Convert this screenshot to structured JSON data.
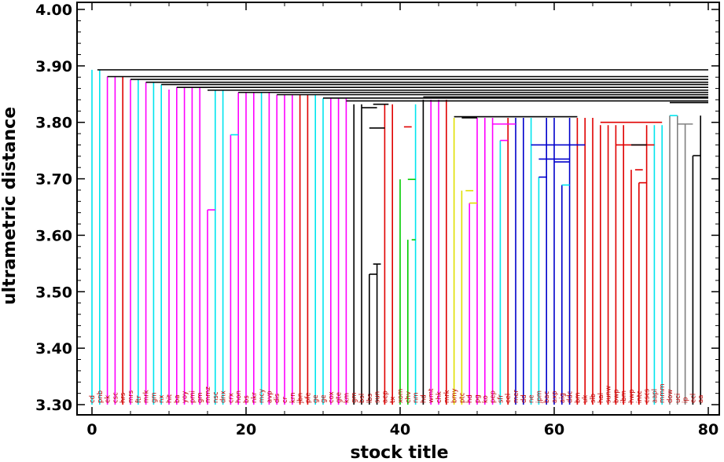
{
  "chart_data": {
    "type": "dendrogram",
    "title": "",
    "xlabel": "stock title",
    "ylabel": "ultrametric distance",
    "xlim": [
      -1,
      81
    ],
    "ylim": [
      3.29,
      4.02
    ],
    "xticks": [
      "0",
      "20",
      "40",
      "60",
      "80"
    ],
    "xtick_values": [
      0,
      20,
      40,
      60,
      80
    ],
    "yticks": [
      "3.30",
      "3.40",
      "3.50",
      "3.60",
      "3.70",
      "3.80",
      "3.90",
      "4.00"
    ],
    "ytick_values": [
      3.3,
      3.4,
      3.5,
      3.6,
      3.7,
      3.8,
      3.9,
      4.0
    ],
    "grid": false,
    "baseline": 3.3,
    "leaves": [
      "cd",
      "pnb",
      "ek",
      "csc",
      "hrs",
      "mrs",
      "ftr",
      "mrk",
      "gm",
      "nx",
      "hit",
      "ba",
      "yoy",
      "pmi",
      "gm",
      "mmz",
      "nsc",
      "dnx",
      "crx",
      "hon",
      "bs",
      "nkr",
      "mcy",
      "avp",
      "dis",
      "cr",
      "krn",
      "jbn",
      "pfe",
      "ge",
      "ge",
      "cox",
      "gte",
      "km",
      "gm",
      "bsl",
      "lbs",
      "sun",
      "aep",
      "tx",
      "xom",
      "chv",
      "nm",
      "hd",
      "wmt",
      "chk",
      "mrk",
      "bmy",
      "ptc",
      "hd",
      "pg",
      "ko",
      "pep",
      "sfr",
      "cel",
      "mer",
      "dd",
      "ne",
      "jpm",
      "bac",
      "axp",
      "aig",
      "ddc",
      "bm",
      "uk",
      "slb",
      "hal",
      "sunw",
      "bwp",
      "ibm",
      "hwp",
      "intc",
      "cscs",
      "aapl",
      "mmm",
      "dow",
      "uci",
      "ip",
      "ecl",
      "aa"
    ],
    "leaf_colors": [
      "#00e5ee",
      "#00e5ee",
      "#ff00ff",
      "#ff00ff",
      "#e00000",
      "#ff00ff",
      "#00e5ee",
      "#ff00ff",
      "#00e5ee",
      "#00e5ee",
      "#ff00ff",
      "#ff00ff",
      "#ff00ff",
      "#ff00ff",
      "#ff00ff",
      "#ff00ff",
      "#00e5ee",
      "#00e5ee",
      "#ff00ff",
      "#ff00ff",
      "#ff00ff",
      "#ff00ff",
      "#00e5ee",
      "#ff00ff",
      "#ff00ff",
      "#ff00ff",
      "#ff00ff",
      "#e00000",
      "#e00000",
      "#00e5ee",
      "#00e5ee",
      "#ff00ff",
      "#ff00ff",
      "#ff00ff",
      "#000000",
      "#000000",
      "#000000",
      "#000000",
      "#e00000",
      "#e00000",
      "#00cc00",
      "#00cc00",
      "#00e5ee",
      "#000000",
      "#ff00ff",
      "#ff00ff",
      "#e00000",
      "#e0e000",
      "#e0e000",
      "#ff00ff",
      "#ff00ff",
      "#ff00ff",
      "#ff00ff",
      "#00e5ee",
      "#e00000",
      "#0000cc",
      "#0000cc",
      "#00e5ee",
      "#00e5ee",
      "#0000cc",
      "#0000cc",
      "#0000cc",
      "#0000cc",
      "#e00000",
      "#e00000",
      "#e00000",
      "#e00000",
      "#e00000",
      "#e00000",
      "#e00000",
      "#e00000",
      "#e00000",
      "#e00000",
      "#00e5ee",
      "#00e5ee",
      "#808080",
      "#808080",
      "#808080",
      "#000000",
      "#000000"
    ],
    "merges": [
      {
        "x1": 0.7,
        "x2": 80,
        "y": 3.893,
        "color": "#000000"
      },
      {
        "x1": 2,
        "x2": 80,
        "y": 3.881,
        "color": "#000000"
      },
      {
        "x1": 5,
        "x2": 80,
        "y": 3.876,
        "color": "#000000"
      },
      {
        "x1": 7,
        "x2": 80,
        "y": 3.871,
        "color": "#000000"
      },
      {
        "x1": 9,
        "x2": 80,
        "y": 3.867,
        "color": "#000000"
      },
      {
        "x1": 11,
        "x2": 80,
        "y": 3.862,
        "color": "#000000"
      },
      {
        "x1": 15,
        "x2": 80,
        "y": 3.857,
        "color": "#000000"
      },
      {
        "x1": 19,
        "x2": 80,
        "y": 3.853,
        "color": "#000000"
      },
      {
        "x1": 24,
        "x2": 80,
        "y": 3.849,
        "color": "#000000"
      },
      {
        "x1": 30,
        "x2": 80,
        "y": 3.843,
        "color": "#000000"
      },
      {
        "x1": 33,
        "x2": 80,
        "y": 3.838,
        "color": "#000000"
      },
      {
        "x1": 43,
        "x2": 80,
        "y": 3.845,
        "color": "#000000"
      },
      {
        "x1": 36.5,
        "x2": 38.5,
        "y": 3.832,
        "color": "#000000"
      },
      {
        "x1": 35,
        "x2": 37,
        "y": 3.826,
        "color": "#000000"
      },
      {
        "x1": 36,
        "x2": 38,
        "y": 3.79,
        "color": "#000000"
      },
      {
        "x1": 36.5,
        "x2": 37.5,
        "y": 3.549,
        "color": "#000000"
      },
      {
        "x1": 36,
        "x2": 37,
        "y": 3.531,
        "color": "#000000"
      },
      {
        "x1": 40.5,
        "x2": 41.5,
        "y": 3.792,
        "color": "#e00000"
      },
      {
        "x1": 41,
        "x2": 42,
        "y": 3.699,
        "color": "#00cc00"
      },
      {
        "x1": 41.5,
        "x2": 42,
        "y": 3.592,
        "color": "#00cc00"
      },
      {
        "x1": 47,
        "x2": 63,
        "y": 3.81,
        "color": "#000000"
      },
      {
        "x1": 48,
        "x2": 50,
        "y": 3.808,
        "color": "#000000"
      },
      {
        "x1": 48.5,
        "x2": 49.5,
        "y": 3.679,
        "color": "#e0e000"
      },
      {
        "x1": 49,
        "x2": 50,
        "y": 3.657,
        "color": "#e0e000"
      },
      {
        "x1": 52,
        "x2": 55,
        "y": 3.797,
        "color": "#ff00ff"
      },
      {
        "x1": 53,
        "x2": 54,
        "y": 3.768,
        "color": "#ff00ff"
      },
      {
        "x1": 57,
        "x2": 64,
        "y": 3.76,
        "color": "#0000cc"
      },
      {
        "x1": 58,
        "x2": 62,
        "y": 3.735,
        "color": "#0000cc"
      },
      {
        "x1": 58,
        "x2": 59,
        "y": 3.703,
        "color": "#0000cc"
      },
      {
        "x1": 60,
        "x2": 62,
        "y": 3.73,
        "color": "#0000cc"
      },
      {
        "x1": 61,
        "x2": 62,
        "y": 3.689,
        "color": "#00e5ee"
      },
      {
        "x1": 66,
        "x2": 74,
        "y": 3.8,
        "color": "#e00000"
      },
      {
        "x1": 68,
        "x2": 73,
        "y": 3.76,
        "color": "#e00000"
      },
      {
        "x1": 70,
        "x2": 72,
        "y": 3.76,
        "color": "#000000"
      },
      {
        "x1": 70.5,
        "x2": 71.5,
        "y": 3.716,
        "color": "#e00000"
      },
      {
        "x1": 71,
        "x2": 72,
        "y": 3.693,
        "color": "#e00000"
      },
      {
        "x1": 75,
        "x2": 80,
        "y": 3.835,
        "color": "#000000"
      },
      {
        "x1": 75,
        "x2": 76,
        "y": 3.812,
        "color": "#00e5ee"
      },
      {
        "x1": 76,
        "x2": 78,
        "y": 3.797,
        "color": "#808080"
      },
      {
        "x1": 78,
        "x2": 79,
        "y": 3.741,
        "color": "#000000"
      },
      {
        "x1": 15,
        "x2": 16,
        "y": 3.645,
        "color": "#ff00ff"
      },
      {
        "x1": 18,
        "x2": 19,
        "y": 3.778,
        "color": "#00e5ee"
      }
    ]
  }
}
